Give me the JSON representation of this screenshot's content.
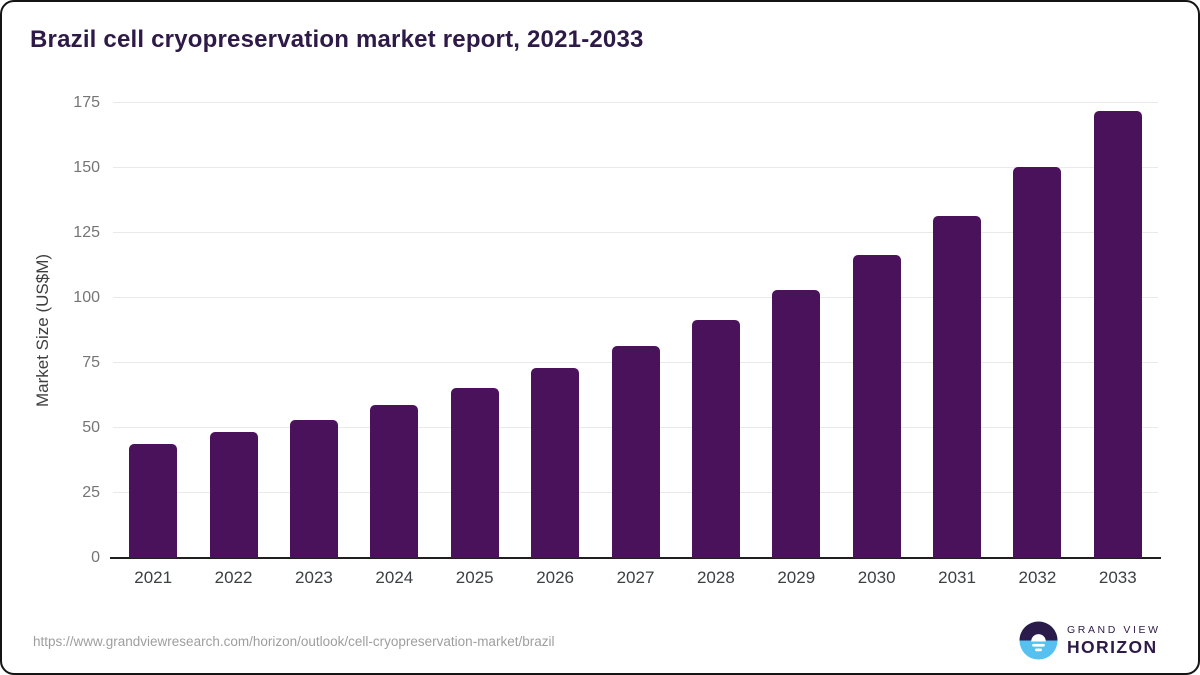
{
  "title": "Brazil cell cryopreservation market report, 2021-2033",
  "chart_data": {
    "type": "bar",
    "title": "Brazil cell cryopreservation market report, 2021-2033",
    "categories": [
      "2021",
      "2022",
      "2023",
      "2024",
      "2025",
      "2026",
      "2027",
      "2028",
      "2029",
      "2030",
      "2031",
      "2032",
      "2033"
    ],
    "values": [
      43.8,
      48.3,
      53.1,
      58.9,
      65.4,
      72.9,
      81.5,
      91.7,
      103.1,
      116.5,
      131.6,
      150.4,
      171.9
    ],
    "xlabel": "",
    "ylabel": "Market Size (US$M)",
    "ylim": [
      0,
      175
    ],
    "yticks": [
      0,
      25,
      50,
      75,
      100,
      125,
      150,
      175
    ],
    "grid": true,
    "legend": "none",
    "bar_color": "#4a125a"
  },
  "footer": {
    "source_url": "https://www.grandviewresearch.com/horizon/outlook/cell-cryopreservation-market/brazil",
    "brand": {
      "line1": "GRAND VIEW",
      "line2": "HORIZON"
    }
  },
  "colors": {
    "bar": "#4a125a",
    "title_text": "#2e1a47",
    "tick_text": "#757575",
    "x_label_text": "#3c4043",
    "gridline": "#e9e9e9",
    "baseline": "#1f1f1f",
    "url_text": "#9e9e9e",
    "logo_dark": "#2b1b4a",
    "logo_blue": "#56c1f0"
  }
}
